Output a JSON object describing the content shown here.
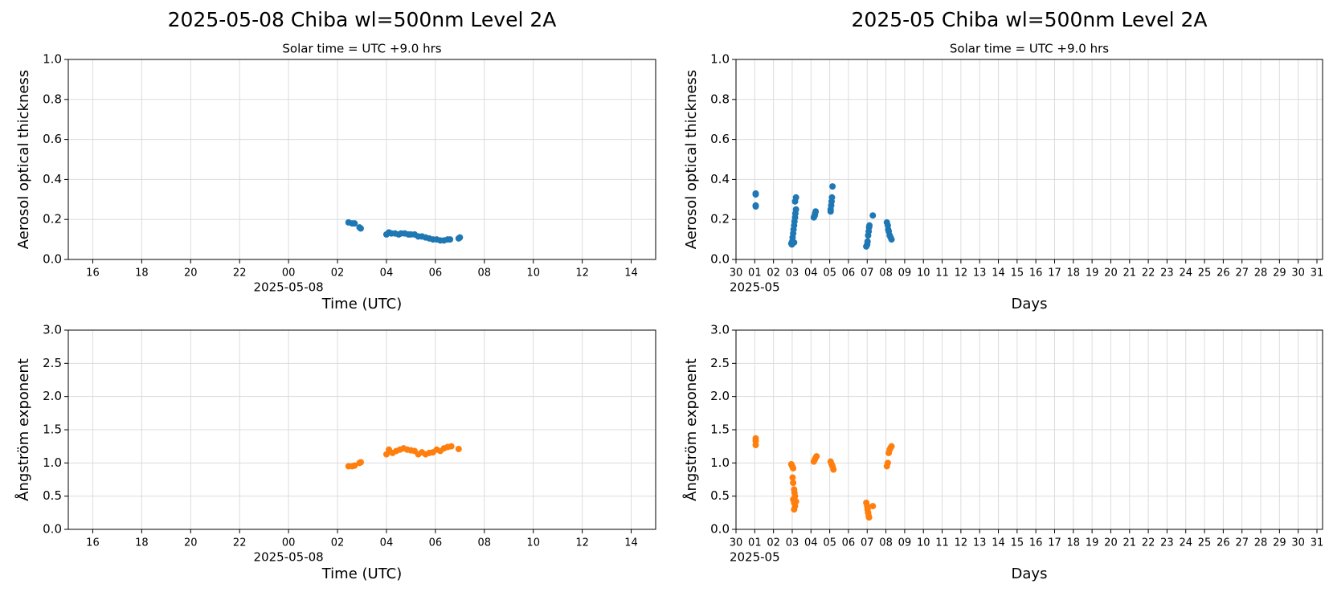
{
  "chart_data": [
    {
      "type": "scatter",
      "title": "2025-05-08  Chiba  wl=500nm  Level 2A",
      "subtitle": "Solar time = UTC +9.0 hrs",
      "x_label": "Time (UTC)",
      "y_label": "Aerosol optical thickness",
      "x_offset_label": "2025-05-08",
      "grid": true,
      "color": "#1f77b4",
      "xlim": [
        -9,
        15
      ],
      "xticks": [
        {
          "value": -8,
          "label": "16"
        },
        {
          "value": -6,
          "label": "18"
        },
        {
          "value": -4,
          "label": "20"
        },
        {
          "value": -2,
          "label": "22"
        },
        {
          "value": 0,
          "label": "00"
        },
        {
          "value": 2,
          "label": "02"
        },
        {
          "value": 4,
          "label": "04"
        },
        {
          "value": 6,
          "label": "06"
        },
        {
          "value": 8,
          "label": "08"
        },
        10,
        12,
        14
      ],
      "ylim": [
        0,
        1
      ],
      "yticks": [
        {
          "value": 0,
          "label": "0.0"
        },
        0.2,
        0.4,
        0.6,
        0.8,
        {
          "value": 1,
          "label": "1.0"
        }
      ],
      "x": [
        2.45,
        2.6,
        2.7,
        2.9,
        2.95,
        4.0,
        4.1,
        4.2,
        4.35,
        4.5,
        4.6,
        4.75,
        4.9,
        5.0,
        5.15,
        5.3,
        5.45,
        5.6,
        5.75,
        5.9,
        6.05,
        6.2,
        6.35,
        6.5,
        6.6,
        6.95,
        7.0
      ],
      "values": [
        0.185,
        0.18,
        0.18,
        0.16,
        0.155,
        0.125,
        0.135,
        0.13,
        0.13,
        0.125,
        0.13,
        0.13,
        0.125,
        0.125,
        0.125,
        0.115,
        0.115,
        0.11,
        0.105,
        0.1,
        0.1,
        0.095,
        0.095,
        0.1,
        0.1,
        0.105,
        0.11
      ]
    },
    {
      "type": "scatter",
      "title": "2025-05  Chiba  wl=500nm  Level 2A",
      "subtitle": "Solar time = UTC +9.0 hrs",
      "x_label": "Days",
      "y_label": "Aerosol optical thickness",
      "x_offset_label": "2025-05",
      "grid": true,
      "color": "#1f77b4",
      "xlim": [
        0,
        31.3
      ],
      "xticks": [
        {
          "value": 0,
          "label": "30"
        },
        {
          "value": 1,
          "label": "01"
        },
        {
          "value": 2,
          "label": "02"
        },
        {
          "value": 3,
          "label": "03"
        },
        {
          "value": 4,
          "label": "04"
        },
        {
          "value": 5,
          "label": "05"
        },
        {
          "value": 6,
          "label": "06"
        },
        {
          "value": 7,
          "label": "07"
        },
        {
          "value": 8,
          "label": "08"
        },
        {
          "value": 9,
          "label": "09"
        },
        10,
        11,
        12,
        13,
        14,
        15,
        16,
        17,
        18,
        19,
        20,
        21,
        22,
        23,
        24,
        25,
        26,
        27,
        28,
        29,
        30,
        31
      ],
      "ylim": [
        0,
        1
      ],
      "yticks": [
        {
          "value": 0,
          "label": "0.0"
        },
        0.2,
        0.4,
        0.6,
        0.8,
        {
          "value": 1,
          "label": "1.0"
        }
      ],
      "x": [
        1.05,
        1.05,
        1.05,
        1.05,
        2.95,
        2.98,
        3.0,
        3.02,
        3.05,
        3.07,
        3.1,
        3.12,
        3.15,
        3.17,
        3.2,
        3.15,
        3.2,
        3.1,
        4.15,
        4.2,
        4.22,
        4.25,
        5.05,
        5.08,
        5.1,
        5.12,
        5.15,
        5.05,
        6.95,
        7.0,
        7.02,
        7.05,
        7.08,
        7.1,
        7.12,
        7.3,
        8.05,
        8.1,
        8.12,
        8.15,
        8.2,
        8.25,
        8.3
      ],
      "values": [
        0.33,
        0.325,
        0.27,
        0.265,
        0.08,
        0.075,
        0.09,
        0.11,
        0.13,
        0.15,
        0.17,
        0.19,
        0.21,
        0.23,
        0.25,
        0.29,
        0.31,
        0.085,
        0.21,
        0.22,
        0.23,
        0.24,
        0.25,
        0.27,
        0.29,
        0.31,
        0.365,
        0.24,
        0.065,
        0.075,
        0.09,
        0.12,
        0.14,
        0.16,
        0.17,
        0.22,
        0.185,
        0.17,
        0.15,
        0.14,
        0.12,
        0.11,
        0.1
      ]
    },
    {
      "type": "scatter",
      "x_label": "Time (UTC)",
      "y_label": "Ångström exponent",
      "x_offset_label": "2025-05-08",
      "grid": true,
      "color": "#ff7f0e",
      "xlim": [
        -9,
        15
      ],
      "xticks": [
        {
          "value": -8,
          "label": "16"
        },
        {
          "value": -6,
          "label": "18"
        },
        {
          "value": -4,
          "label": "20"
        },
        {
          "value": -2,
          "label": "22"
        },
        {
          "value": 0,
          "label": "00"
        },
        {
          "value": 2,
          "label": "02"
        },
        {
          "value": 4,
          "label": "04"
        },
        {
          "value": 6,
          "label": "06"
        },
        {
          "value": 8,
          "label": "08"
        },
        10,
        12,
        14
      ],
      "ylim": [
        0,
        3
      ],
      "yticks": [
        {
          "value": 0,
          "label": "0.0"
        },
        0.5,
        {
          "value": 1,
          "label": "1.0"
        },
        1.5,
        {
          "value": 2,
          "label": "2.0"
        },
        2.5,
        {
          "value": 3,
          "label": "3.0"
        }
      ],
      "x": [
        2.45,
        2.6,
        2.7,
        2.9,
        2.95,
        4.0,
        4.1,
        4.25,
        4.4,
        4.55,
        4.7,
        4.85,
        5.0,
        5.15,
        5.3,
        5.45,
        5.6,
        5.75,
        5.9,
        6.05,
        6.2,
        6.35,
        6.5,
        6.65,
        6.95
      ],
      "values": [
        0.95,
        0.95,
        0.96,
        1.0,
        1.01,
        1.13,
        1.2,
        1.15,
        1.18,
        1.2,
        1.22,
        1.2,
        1.19,
        1.18,
        1.13,
        1.16,
        1.13,
        1.15,
        1.16,
        1.2,
        1.18,
        1.22,
        1.24,
        1.25,
        1.21
      ]
    },
    {
      "type": "scatter",
      "x_label": "Days",
      "y_label": "Ångström exponent",
      "x_offset_label": "2025-05",
      "grid": true,
      "color": "#ff7f0e",
      "xlim": [
        0,
        31.3
      ],
      "xticks": [
        {
          "value": 0,
          "label": "30"
        },
        {
          "value": 1,
          "label": "01"
        },
        {
          "value": 2,
          "label": "02"
        },
        {
          "value": 3,
          "label": "03"
        },
        {
          "value": 4,
          "label": "04"
        },
        {
          "value": 5,
          "label": "05"
        },
        {
          "value": 6,
          "label": "06"
        },
        {
          "value": 7,
          "label": "07"
        },
        {
          "value": 8,
          "label": "08"
        },
        {
          "value": 9,
          "label": "09"
        },
        10,
        11,
        12,
        13,
        14,
        15,
        16,
        17,
        18,
        19,
        20,
        21,
        22,
        23,
        24,
        25,
        26,
        27,
        28,
        29,
        30,
        31
      ],
      "ylim": [
        0,
        3
      ],
      "yticks": [
        {
          "value": 0,
          "label": "0.0"
        },
        0.5,
        {
          "value": 1,
          "label": "1.0"
        },
        1.5,
        {
          "value": 2,
          "label": "2.0"
        },
        2.5,
        {
          "value": 3,
          "label": "3.0"
        }
      ],
      "x": [
        1.05,
        1.05,
        1.05,
        2.95,
        3.0,
        3.05,
        3.02,
        3.05,
        3.1,
        3.12,
        3.15,
        3.05,
        3.1,
        3.15,
        3.1,
        3.2,
        4.15,
        4.2,
        4.25,
        4.3,
        5.05,
        5.1,
        5.15,
        5.2,
        6.95,
        7.0,
        7.02,
        7.05,
        7.08,
        7.1,
        7.3,
        8.05,
        8.1,
        8.15,
        8.2,
        8.25,
        8.3
      ],
      "values": [
        1.37,
        1.33,
        1.27,
        0.98,
        0.95,
        0.92,
        0.78,
        0.7,
        0.6,
        0.55,
        0.5,
        0.45,
        0.4,
        0.35,
        0.3,
        0.42,
        1.02,
        1.05,
        1.08,
        1.1,
        1.02,
        0.98,
        0.95,
        0.9,
        0.4,
        0.35,
        0.3,
        0.25,
        0.2,
        0.18,
        0.35,
        0.95,
        1.0,
        1.15,
        1.2,
        1.23,
        1.25
      ]
    }
  ]
}
